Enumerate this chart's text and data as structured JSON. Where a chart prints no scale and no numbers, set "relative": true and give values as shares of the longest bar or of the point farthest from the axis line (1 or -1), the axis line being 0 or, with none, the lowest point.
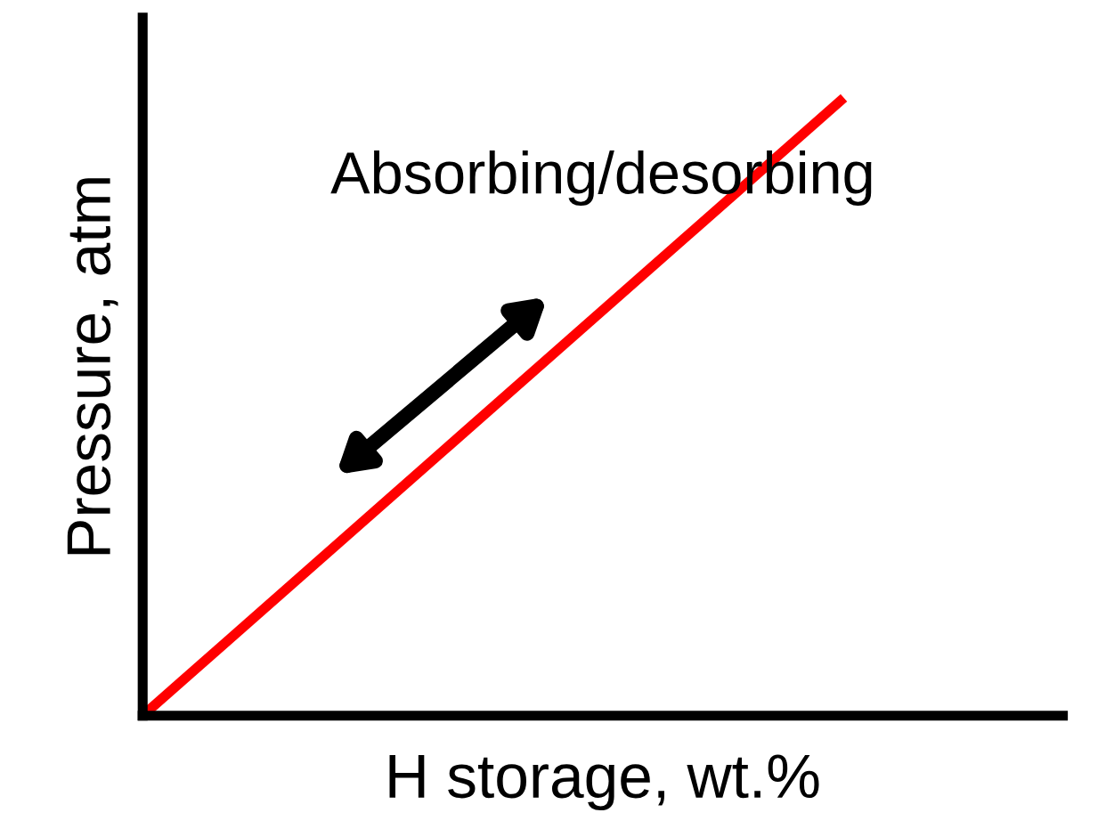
{
  "chart_data": {
    "type": "line",
    "relative": true,
    "xlabel": "H storage, wt.%",
    "ylabel": "Pressure, atm",
    "categories": [
      null,
      null
    ],
    "series": [
      {
        "color": "#ff0000",
        "values": [
          0,
          1
        ]
      }
    ],
    "annotations": [
      "Absorbing/desorbing"
    ],
    "legend": false,
    "marker": "none",
    "line_style": "solid"
  }
}
